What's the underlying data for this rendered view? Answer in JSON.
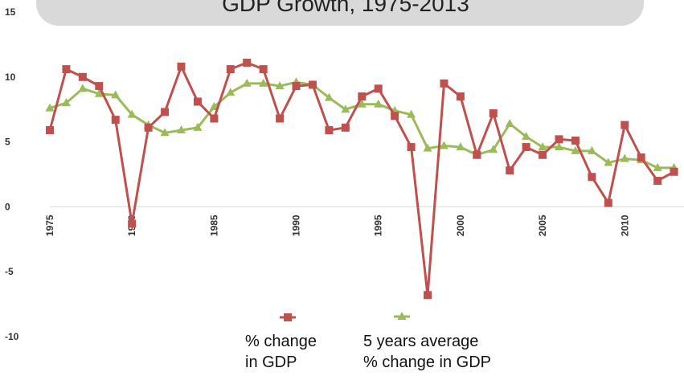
{
  "chart_data": {
    "type": "line",
    "title": "GDP Growth, 1975-2013",
    "x": [
      1975,
      1976,
      1977,
      1978,
      1979,
      1980,
      1981,
      1982,
      1983,
      1984,
      1985,
      1986,
      1987,
      1988,
      1989,
      1990,
      1991,
      1992,
      1993,
      1994,
      1995,
      1996,
      1997,
      1998,
      1999,
      2000,
      2001,
      2002,
      2003,
      2004,
      2005,
      2006,
      2007,
      2008,
      2009,
      2010,
      2011,
      2012,
      2013
    ],
    "x_tick_labels": [
      "1975",
      "1980",
      "1985",
      "1990",
      "1995",
      "2000",
      "2005",
      "2010"
    ],
    "y_tick_labels": [
      "15",
      "10",
      "5",
      "0",
      "-5",
      "-10"
    ],
    "ylim": [
      -10,
      15
    ],
    "xlim": [
      1975,
      2013
    ],
    "grid": false,
    "legend_position": "bottom",
    "series": [
      {
        "name": "% change in GDP",
        "name_lines": [
          "% change",
          "in GDP"
        ],
        "color": "#c0504d",
        "marker": "square",
        "values": [
          5.9,
          10.6,
          10.0,
          9.3,
          6.7,
          -1.3,
          6.1,
          7.3,
          10.8,
          8.1,
          6.8,
          10.6,
          11.1,
          10.6,
          6.8,
          9.3,
          9.4,
          5.9,
          6.1,
          8.5,
          9.1,
          7.0,
          4.6,
          -6.8,
          9.5,
          8.5,
          4.0,
          7.2,
          2.8,
          4.6,
          4.0,
          5.2,
          5.1,
          2.3,
          0.3,
          6.3,
          3.8,
          2.0,
          2.7
        ]
      },
      {
        "name": "5 years average % change in GDP",
        "name_lines": [
          "5 years average",
          "% change in GDP"
        ],
        "color": "#9bbb59",
        "marker": "triangle",
        "values": [
          7.6,
          8.0,
          9.1,
          8.7,
          8.6,
          7.1,
          6.3,
          5.7,
          5.9,
          6.1,
          7.7,
          8.8,
          9.5,
          9.5,
          9.3,
          9.6,
          9.4,
          8.4,
          7.5,
          7.9,
          7.9,
          7.4,
          7.1,
          4.5,
          4.7,
          4.6,
          4.0,
          4.4,
          6.4,
          5.4,
          4.6,
          4.6,
          4.3,
          4.3,
          3.4,
          3.7,
          3.6,
          3.0,
          3.0
        ]
      }
    ]
  }
}
